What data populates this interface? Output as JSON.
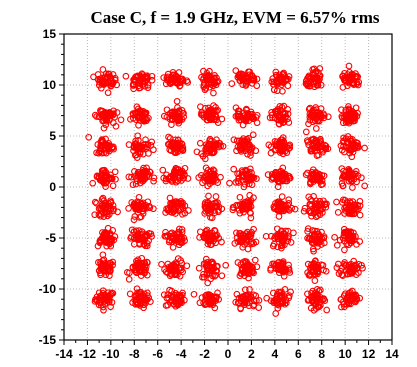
{
  "chart_data": {
    "type": "scatter",
    "title": "Case C, f = 1.9 GHz, EVM = 6.57% rms",
    "xlabel": "",
    "ylabel": "",
    "xlim": [
      -14,
      14
    ],
    "ylim": [
      -15,
      15
    ],
    "x_ticks": [
      -14,
      -12,
      -10,
      -8,
      -6,
      -4,
      -2,
      0,
      2,
      4,
      6,
      8,
      10,
      12,
      14
    ],
    "y_ticks": [
      -15,
      -10,
      -5,
      0,
      5,
      10,
      15
    ],
    "grid": true,
    "marker": "open-circle",
    "series": [
      {
        "color": "#ff0000",
        "constellation_centers_x": [
          -10.5,
          -7.5,
          -4.5,
          -1.5,
          1.5,
          4.5,
          7.5,
          10.5
        ],
        "constellation_centers_y": [
          -11,
          -8,
          -5,
          -2,
          1,
          4,
          7,
          10.5
        ],
        "cluster_spread_rms": 0.75,
        "points_per_cluster": 45
      }
    ]
  }
}
